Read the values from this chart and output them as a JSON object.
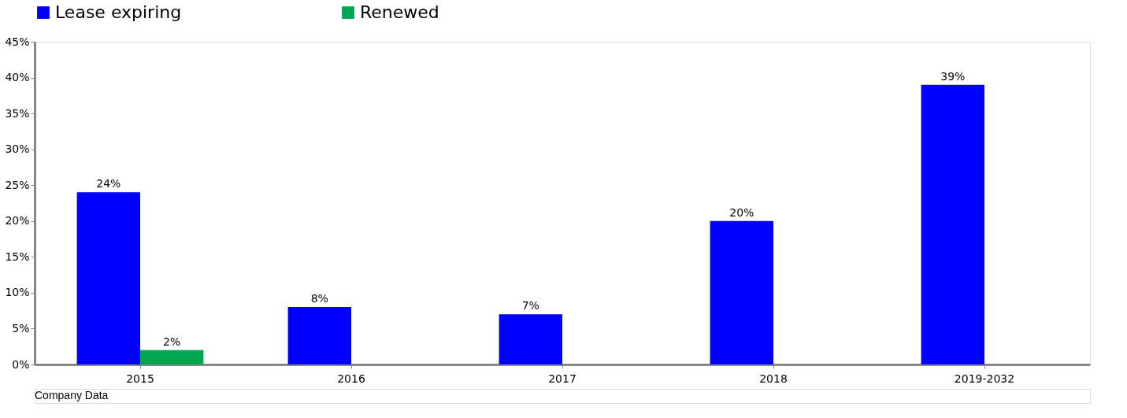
{
  "chart_data": {
    "type": "bar",
    "categories": [
      "2015",
      "2016",
      "2017",
      "2018",
      "2019-2032"
    ],
    "series": [
      {
        "name": "Lease expiring",
        "color": "#0000ff",
        "values": [
          24,
          8,
          7,
          20,
          39
        ],
        "value_labels": [
          "24%",
          "8%",
          "7%",
          "20%",
          "39%"
        ]
      },
      {
        "name": "Renewed",
        "color": "#00a651",
        "values": [
          2,
          null,
          null,
          null,
          null
        ],
        "value_labels": [
          "2%",
          null,
          null,
          null,
          null
        ]
      }
    ],
    "ylim": [
      0,
      45
    ],
    "yticks": [
      {
        "value": 0,
        "label": "0%"
      },
      {
        "value": 5,
        "label": "5%"
      },
      {
        "value": 10,
        "label": "10%"
      },
      {
        "value": 15,
        "label": "15%"
      },
      {
        "value": 20,
        "label": "20%"
      },
      {
        "value": 25,
        "label": "25%"
      },
      {
        "value": 30,
        "label": "30%"
      },
      {
        "value": 35,
        "label": "35%"
      },
      {
        "value": 40,
        "label": "40%"
      },
      {
        "value": 45,
        "label": "45%"
      }
    ],
    "grid": false,
    "legend": "top",
    "annotations": [
      "Company Data"
    ]
  }
}
